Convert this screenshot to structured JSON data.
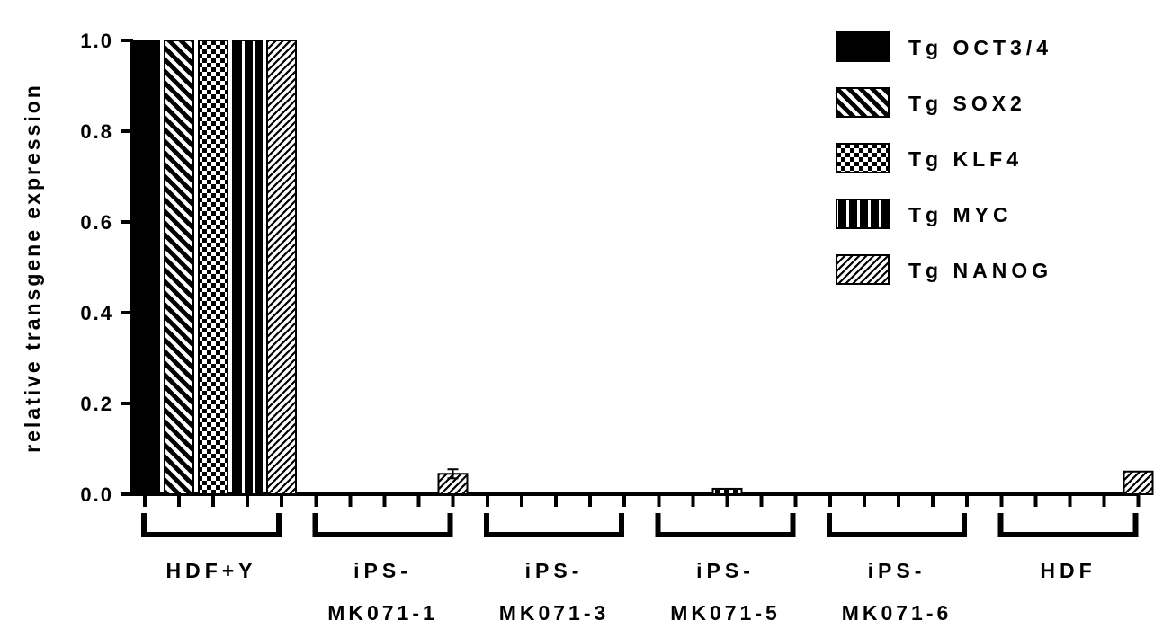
{
  "chart_data": {
    "type": "bar",
    "title": "",
    "xlabel": "",
    "ylabel": "relative transgene expression",
    "ylim": [
      0,
      1.0
    ],
    "yticks": [
      "0.0",
      "0.2",
      "0.4",
      "0.6",
      "0.8",
      "1.0"
    ],
    "grid": false,
    "legend_position": "top-right",
    "categories": [
      {
        "line1": "HDF+Y",
        "line2": "",
        "color": "#000000"
      },
      {
        "line1": "iPS-",
        "line2": "MK071-1",
        "color": "#000000"
      },
      {
        "line1": "iPS-",
        "line2": "MK071-3",
        "color": "#000000"
      },
      {
        "line1": "iPS-",
        "line2": "MK071-5",
        "color": "#ff0000"
      },
      {
        "line1": "iPS-",
        "line2": "MK071-6",
        "color": "#000000"
      },
      {
        "line1": "HDF",
        "line2": "",
        "color": "#000000"
      }
    ],
    "series": [
      {
        "name": "Tg OCT3/4",
        "pattern": "solid",
        "values": [
          1.0,
          0.0,
          0.0,
          0.0,
          0.002,
          0.0
        ]
      },
      {
        "name": "Tg SOX2",
        "pattern": "backdiag",
        "values": [
          1.0,
          0.0,
          0.0,
          0.0,
          0.0,
          0.0
        ]
      },
      {
        "name": "Tg KLF4",
        "pattern": "checker",
        "values": [
          1.0,
          0.0,
          0.0,
          0.012,
          0.0,
          0.0
        ]
      },
      {
        "name": "Tg MYC",
        "pattern": "vlines",
        "values": [
          1.0,
          0.0,
          0.0,
          0.0,
          0.0,
          0.0
        ]
      },
      {
        "name": "Tg NANOG",
        "pattern": "diag",
        "values": [
          1.0,
          0.045,
          0.002,
          0.003,
          0.0,
          0.05
        ]
      }
    ],
    "error_bars": [
      {
        "category": 1,
        "series": 4,
        "value": 0.045,
        "err": 0.01
      }
    ]
  }
}
